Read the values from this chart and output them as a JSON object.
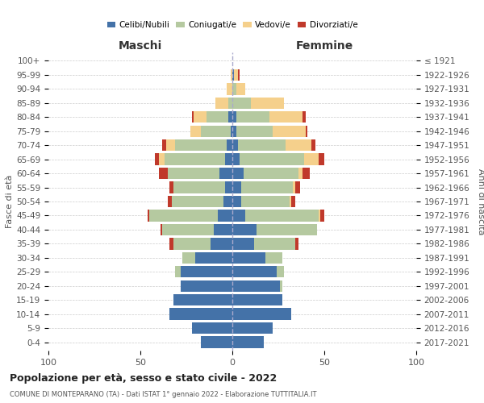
{
  "age_groups": [
    "0-4",
    "5-9",
    "10-14",
    "15-19",
    "20-24",
    "25-29",
    "30-34",
    "35-39",
    "40-44",
    "45-49",
    "50-54",
    "55-59",
    "60-64",
    "65-69",
    "70-74",
    "75-79",
    "80-84",
    "85-89",
    "90-94",
    "95-99",
    "100+"
  ],
  "birth_years": [
    "2017-2021",
    "2012-2016",
    "2007-2011",
    "2002-2006",
    "1997-2001",
    "1992-1996",
    "1987-1991",
    "1982-1986",
    "1977-1981",
    "1972-1976",
    "1967-1971",
    "1962-1966",
    "1957-1961",
    "1952-1956",
    "1947-1951",
    "1942-1946",
    "1937-1941",
    "1932-1936",
    "1927-1931",
    "1922-1926",
    "≤ 1921"
  ],
  "males": {
    "celibi": [
      17,
      22,
      34,
      32,
      28,
      28,
      20,
      12,
      10,
      8,
      5,
      4,
      7,
      4,
      3,
      1,
      2,
      0,
      0,
      0,
      0
    ],
    "coniugati": [
      0,
      0,
      0,
      0,
      0,
      3,
      7,
      20,
      28,
      37,
      28,
      28,
      28,
      33,
      28,
      16,
      12,
      2,
      0,
      0,
      0
    ],
    "vedovi": [
      0,
      0,
      0,
      0,
      0,
      0,
      0,
      0,
      0,
      0,
      0,
      0,
      0,
      3,
      5,
      6,
      7,
      7,
      3,
      1,
      0
    ],
    "divorziati": [
      0,
      0,
      0,
      0,
      0,
      0,
      0,
      2,
      1,
      1,
      2,
      2,
      5,
      2,
      2,
      0,
      1,
      0,
      0,
      0,
      0
    ]
  },
  "females": {
    "nubili": [
      17,
      22,
      32,
      27,
      26,
      24,
      18,
      12,
      13,
      7,
      5,
      5,
      6,
      4,
      3,
      2,
      2,
      0,
      0,
      1,
      0
    ],
    "coniugate": [
      0,
      0,
      0,
      0,
      1,
      4,
      9,
      22,
      33,
      40,
      26,
      28,
      30,
      35,
      26,
      20,
      18,
      10,
      2,
      0,
      0
    ],
    "vedove": [
      0,
      0,
      0,
      0,
      0,
      0,
      0,
      0,
      0,
      1,
      1,
      1,
      2,
      8,
      14,
      18,
      18,
      18,
      5,
      2,
      0
    ],
    "divorziate": [
      0,
      0,
      0,
      0,
      0,
      0,
      0,
      2,
      0,
      2,
      2,
      3,
      4,
      3,
      2,
      1,
      2,
      0,
      0,
      1,
      0
    ]
  },
  "colors": {
    "celibi": "#4472a8",
    "coniugati": "#b5c9a0",
    "vedovi": "#f5d08c",
    "divorziati": "#c0392b"
  },
  "title1": "Popolazione per età, sesso e stato civile - 2022",
  "title2": "COMUNE DI MONTEPARANO (TA) - Dati ISTAT 1° gennaio 2022 - Elaborazione TUTTITALIA.IT",
  "xlabel_left": "Maschi",
  "xlabel_right": "Femmine",
  "ylabel_left": "Fasce di età",
  "ylabel_right": "Anni di nascita",
  "xlim": 100,
  "bg_color": "#ffffff",
  "grid_color": "#cccccc"
}
